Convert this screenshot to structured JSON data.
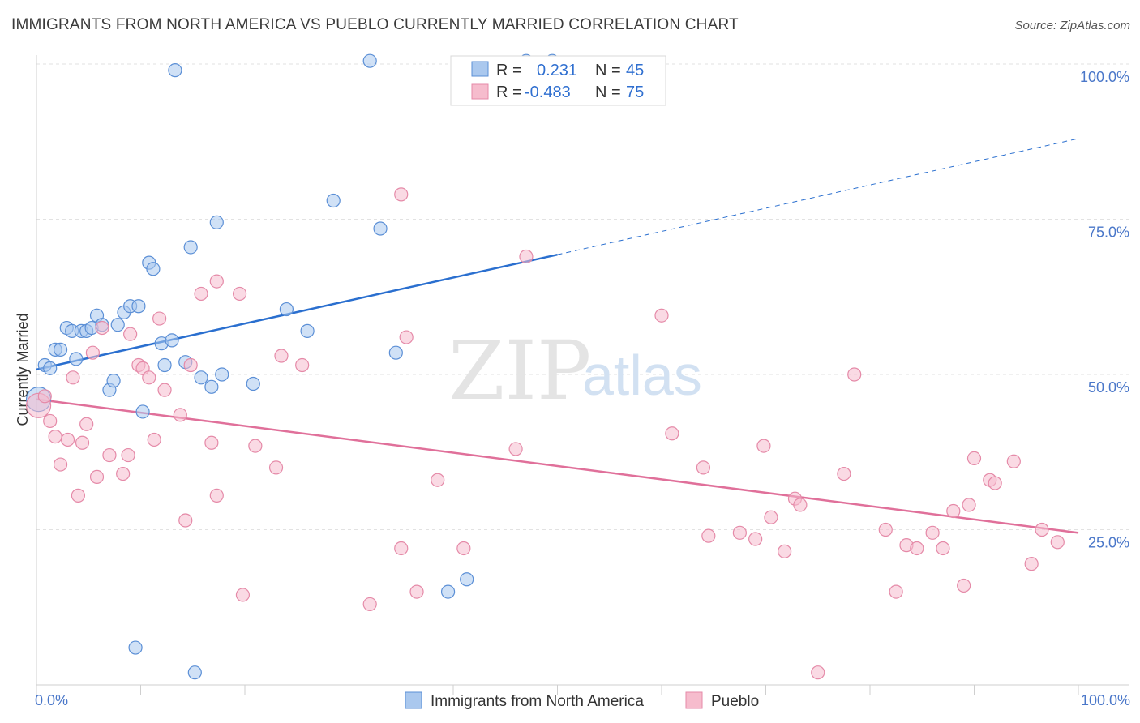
{
  "title": "IMMIGRANTS FROM NORTH AMERICA VS PUEBLO CURRENTLY MARRIED CORRELATION CHART",
  "source": "Source: ZipAtlas.com",
  "watermark": {
    "zip": "ZIP",
    "atlas": "atlas"
  },
  "legend": {
    "rows": [
      {
        "r_label": "R =",
        "r_value": "0.231",
        "n_label": "N =",
        "n_value": "45"
      },
      {
        "r_label": "R =",
        "r_value": "-0.483",
        "n_label": "N =",
        "n_value": "75"
      }
    ]
  },
  "bottom_legend": [
    "Immigrants from North America",
    "Pueblo"
  ],
  "colors": {
    "blue_fill": "#aac8ee",
    "blue_stroke": "#5b8fd6",
    "blue_line": "#2a6fcf",
    "pink_fill": "#f6bccd",
    "pink_stroke": "#e58aa8",
    "pink_line": "#e0709a"
  },
  "chart_data": {
    "type": "scatter",
    "title": "IMMIGRANTS FROM NORTH AMERICA VS PUEBLO CURRENTLY MARRIED CORRELATION CHART",
    "xlabel": "",
    "ylabel": "Currently Married",
    "xlim": [
      0,
      100
    ],
    "ylim": [
      0,
      100
    ],
    "x_tick_labels": [
      "0.0%",
      "100.0%"
    ],
    "y_ticks": [
      25,
      50,
      75,
      100
    ],
    "y_tick_labels": [
      "25.0%",
      "50.0%",
      "75.0%",
      "100.0%"
    ],
    "grid": true,
    "legend_position": "top-center",
    "series": [
      {
        "name": "Immigrants from North America",
        "R": 0.231,
        "N": 45,
        "points": [
          [
            0.2,
            46.0
          ],
          [
            0.8,
            51.5
          ],
          [
            1.3,
            51.0
          ],
          [
            1.8,
            54.0
          ],
          [
            2.3,
            54.0
          ],
          [
            2.9,
            57.5
          ],
          [
            3.4,
            57.0
          ],
          [
            3.8,
            52.5
          ],
          [
            4.3,
            57.0
          ],
          [
            4.8,
            57.0
          ],
          [
            5.3,
            57.5
          ],
          [
            5.8,
            59.5
          ],
          [
            6.3,
            58.0
          ],
          [
            7.0,
            47.5
          ],
          [
            7.4,
            49.0
          ],
          [
            7.8,
            58.0
          ],
          [
            8.4,
            60.0
          ],
          [
            9.0,
            61.0
          ],
          [
            9.8,
            61.0
          ],
          [
            10.2,
            44.0
          ],
          [
            10.8,
            68.0
          ],
          [
            11.2,
            67.0
          ],
          [
            12.0,
            55.0
          ],
          [
            12.3,
            51.5
          ],
          [
            13.0,
            55.5
          ],
          [
            13.3,
            99.0
          ],
          [
            14.3,
            52.0
          ],
          [
            14.8,
            70.5
          ],
          [
            15.8,
            49.5
          ],
          [
            16.8,
            48.0
          ],
          [
            17.3,
            74.5
          ],
          [
            17.8,
            50.0
          ],
          [
            20.8,
            48.5
          ],
          [
            24.0,
            60.5
          ],
          [
            26.0,
            57.0
          ],
          [
            28.5,
            78.0
          ],
          [
            32.0,
            100.5
          ],
          [
            33.0,
            73.5
          ],
          [
            34.5,
            53.5
          ],
          [
            39.5,
            15.0
          ],
          [
            41.3,
            17.0
          ],
          [
            47.0,
            100.5
          ],
          [
            49.5,
            100.5
          ],
          [
            9.5,
            6.0
          ],
          [
            15.2,
            2.0
          ]
        ],
        "trend": {
          "x0": 0,
          "y0": 50.8,
          "x1": 50,
          "y1": 69.3,
          "dashed_to_x": 100,
          "dashed_to_y": 88.0
        }
      },
      {
        "name": "Pueblo",
        "R": -0.483,
        "N": 75,
        "points": [
          [
            0.2,
            45.0
          ],
          [
            0.8,
            46.5
          ],
          [
            1.3,
            42.5
          ],
          [
            1.8,
            40.0
          ],
          [
            2.3,
            35.5
          ],
          [
            3.0,
            39.5
          ],
          [
            3.5,
            49.5
          ],
          [
            4.0,
            30.5
          ],
          [
            4.4,
            39.0
          ],
          [
            4.8,
            42.0
          ],
          [
            5.4,
            53.5
          ],
          [
            5.8,
            33.5
          ],
          [
            6.3,
            57.5
          ],
          [
            7.0,
            37.0
          ],
          [
            8.3,
            34.0
          ],
          [
            8.8,
            37.0
          ],
          [
            9.0,
            56.5
          ],
          [
            9.8,
            51.5
          ],
          [
            10.2,
            51.0
          ],
          [
            10.8,
            49.5
          ],
          [
            11.3,
            39.5
          ],
          [
            11.8,
            59.0
          ],
          [
            12.3,
            47.5
          ],
          [
            13.8,
            43.5
          ],
          [
            14.3,
            26.5
          ],
          [
            14.8,
            51.5
          ],
          [
            15.8,
            63.0
          ],
          [
            16.8,
            39.0
          ],
          [
            17.3,
            65.0
          ],
          [
            17.3,
            30.5
          ],
          [
            19.5,
            63.0
          ],
          [
            19.8,
            14.5
          ],
          [
            21.0,
            38.5
          ],
          [
            23.0,
            35.0
          ],
          [
            23.5,
            53.0
          ],
          [
            25.5,
            51.5
          ],
          [
            35.0,
            79.0
          ],
          [
            35.5,
            56.0
          ],
          [
            32.0,
            13.0
          ],
          [
            35.0,
            22.0
          ],
          [
            36.5,
            15.0
          ],
          [
            38.5,
            33.0
          ],
          [
            41.0,
            22.0
          ],
          [
            46.0,
            38.0
          ],
          [
            47.0,
            69.0
          ],
          [
            60.0,
            59.5
          ],
          [
            61.0,
            40.5
          ],
          [
            64.0,
            35.0
          ],
          [
            64.5,
            24.0
          ],
          [
            67.5,
            24.5
          ],
          [
            69.0,
            23.5
          ],
          [
            69.8,
            38.5
          ],
          [
            70.5,
            27.0
          ],
          [
            71.8,
            21.5
          ],
          [
            72.8,
            30.0
          ],
          [
            73.3,
            29.0
          ],
          [
            75.0,
            2.0
          ],
          [
            77.5,
            34.0
          ],
          [
            78.5,
            50.0
          ],
          [
            81.5,
            25.0
          ],
          [
            82.5,
            15.0
          ],
          [
            83.5,
            22.5
          ],
          [
            84.5,
            22.0
          ],
          [
            86.0,
            24.5
          ],
          [
            87.0,
            22.0
          ],
          [
            88.0,
            28.0
          ],
          [
            89.0,
            16.0
          ],
          [
            89.5,
            29.0
          ],
          [
            90.0,
            36.5
          ],
          [
            91.5,
            33.0
          ],
          [
            92.0,
            32.5
          ],
          [
            93.8,
            36.0
          ],
          [
            95.5,
            19.5
          ],
          [
            96.5,
            25.0
          ],
          [
            98.0,
            23.0
          ]
        ],
        "trend": {
          "x0": 0,
          "y0": 46.0,
          "x1": 100,
          "y1": 24.5
        }
      }
    ]
  }
}
